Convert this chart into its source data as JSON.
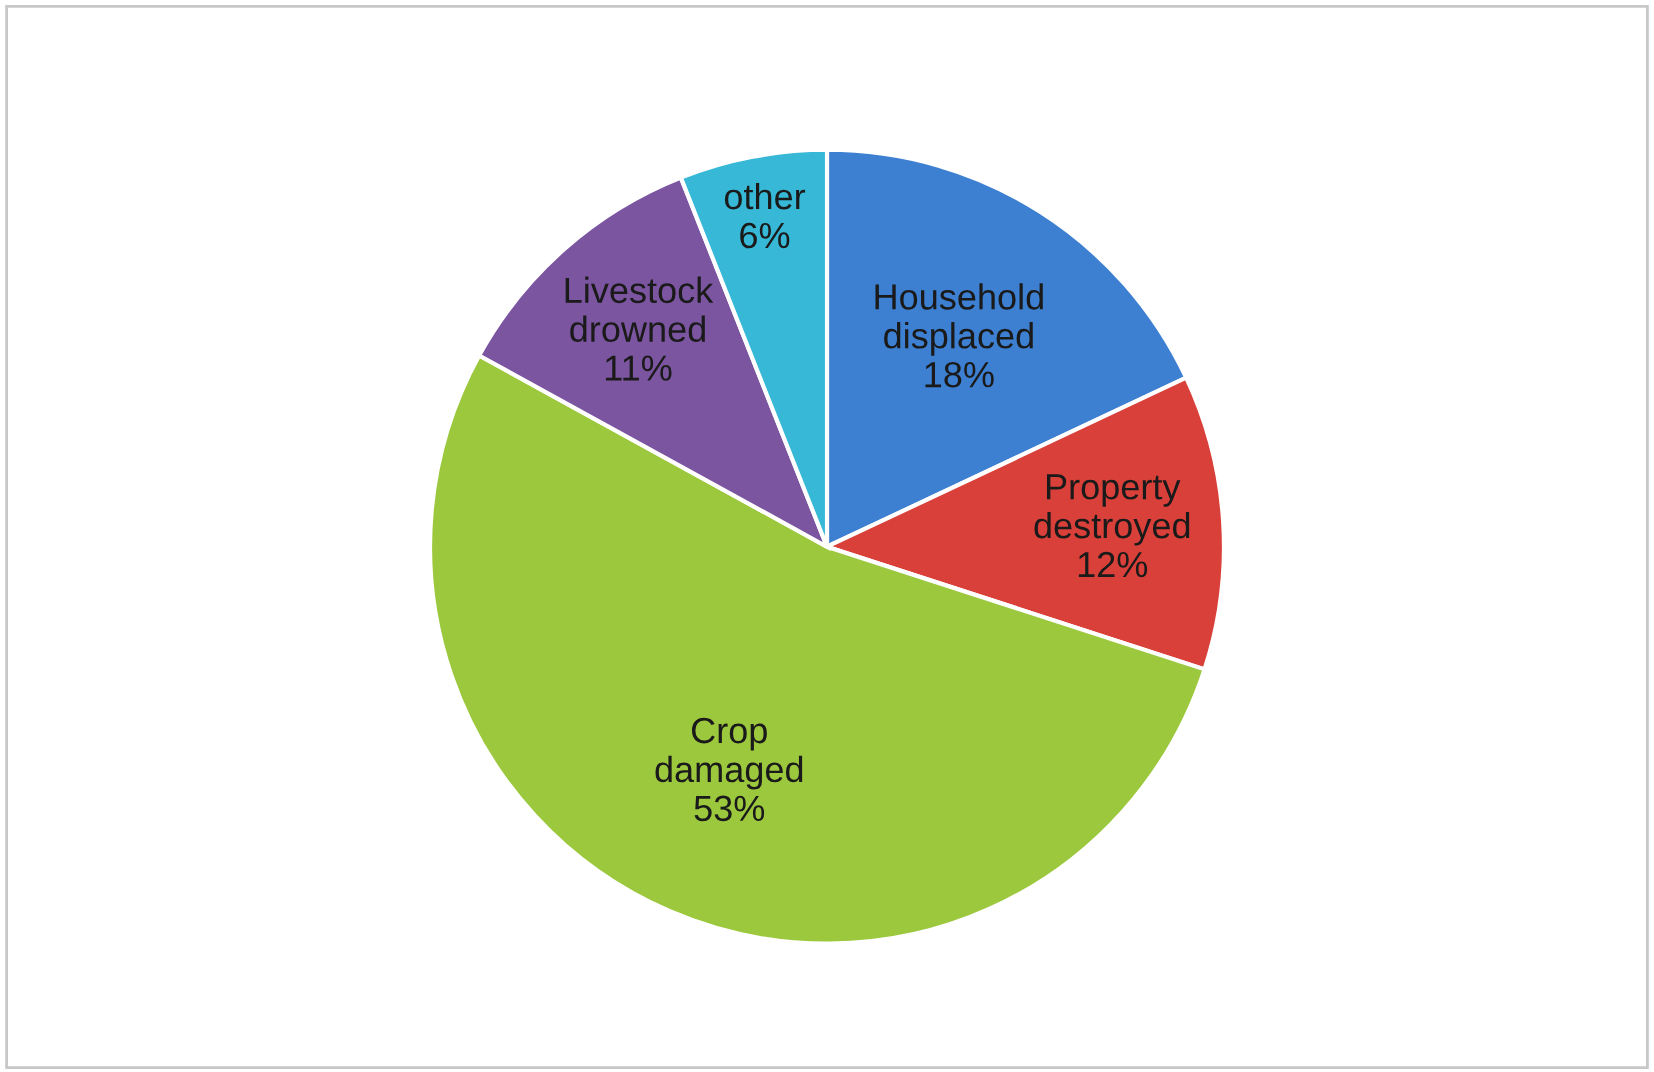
{
  "chart_data": {
    "type": "pie",
    "categories": [
      "Household displaced",
      "Property destroyed",
      "Crop damaged",
      "Livestock drowned",
      "other"
    ],
    "values": [
      18,
      12,
      53,
      11,
      6
    ],
    "value_labels": [
      "18%",
      "12%",
      "53%",
      "11%",
      "6%"
    ],
    "colors": [
      "#3d7fd1",
      "#d9403a",
      "#9cc83e",
      "#7c55a1",
      "#36b8d6"
    ],
    "legend": false
  }
}
